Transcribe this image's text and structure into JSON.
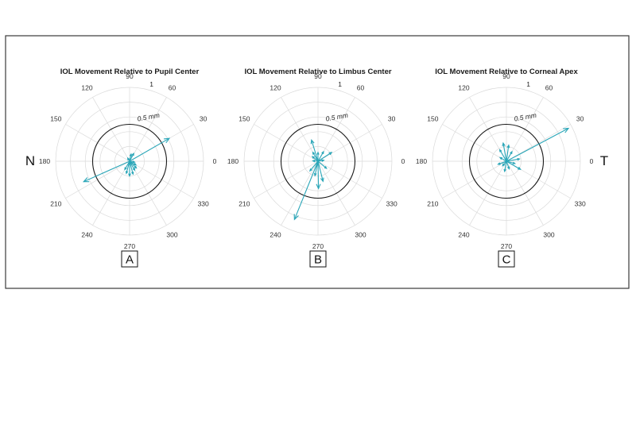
{
  "figure": {
    "side_left": "N",
    "side_right": "T",
    "vector_color": "#2aa6b8"
  },
  "chart_data": [
    {
      "type": "polar-compass",
      "title": "IOL Movement Relative to Pupil Center",
      "panel_label": "A",
      "theta_labels": [
        "0",
        "30",
        "60",
        "90",
        "120",
        "150",
        "180",
        "210",
        "240",
        "270",
        "300",
        "330"
      ],
      "r_max": 1,
      "r_max_label": "1",
      "ring_radius": 0.5,
      "ring_label": "0.5 mm",
      "vectors": [
        {
          "angle": 30,
          "r": 0.62
        },
        {
          "angle": 204,
          "r": 0.68
        },
        {
          "angle": 62,
          "r": 0.12
        },
        {
          "angle": 78,
          "r": 0.1
        },
        {
          "angle": 300,
          "r": 0.14
        },
        {
          "angle": 285,
          "r": 0.18
        },
        {
          "angle": 270,
          "r": 0.2
        },
        {
          "angle": 255,
          "r": 0.17
        },
        {
          "angle": 315,
          "r": 0.13
        },
        {
          "angle": 330,
          "r": 0.1
        },
        {
          "angle": 240,
          "r": 0.13
        },
        {
          "angle": 350,
          "r": 0.07
        },
        {
          "angle": 120,
          "r": 0.05
        }
      ]
    },
    {
      "type": "polar-compass",
      "title": "IOL Movement Relative to Limbus Center",
      "panel_label": "B",
      "theta_labels": [
        "0",
        "30",
        "60",
        "90",
        "120",
        "150",
        "180",
        "210",
        "240",
        "270",
        "300",
        "330"
      ],
      "r_max": 1,
      "r_max_label": "1",
      "ring_radius": 0.5,
      "ring_label": "0.5 mm",
      "vectors": [
        {
          "angle": 248,
          "r": 0.85
        },
        {
          "angle": 107,
          "r": 0.3
        },
        {
          "angle": 271,
          "r": 0.37
        },
        {
          "angle": 284,
          "r": 0.28
        },
        {
          "angle": 33,
          "r": 0.22
        },
        {
          "angle": 60,
          "r": 0.15
        },
        {
          "angle": 90,
          "r": 0.12
        },
        {
          "angle": 140,
          "r": 0.1
        },
        {
          "angle": 120,
          "r": 0.14
        },
        {
          "angle": 320,
          "r": 0.15
        },
        {
          "angle": 230,
          "r": 0.17
        },
        {
          "angle": 258,
          "r": 0.2
        },
        {
          "angle": 10,
          "r": 0.08
        },
        {
          "angle": 175,
          "r": 0.07
        }
      ]
    },
    {
      "type": "polar-compass",
      "title": "IOL Movement Relative to Corneal Apex",
      "panel_label": "C",
      "theta_labels": [
        "0",
        "30",
        "60",
        "90",
        "120",
        "150",
        "180",
        "210",
        "240",
        "270",
        "300",
        "330"
      ],
      "r_max": 1,
      "r_max_label": "1",
      "ring_radius": 0.5,
      "ring_label": "0.5 mm",
      "vectors": [
        {
          "angle": 28,
          "r": 0.95
        },
        {
          "angle": 100,
          "r": 0.25
        },
        {
          "angle": 82,
          "r": 0.22
        },
        {
          "angle": 120,
          "r": 0.18
        },
        {
          "angle": 60,
          "r": 0.15
        },
        {
          "angle": 150,
          "r": 0.1
        },
        {
          "angle": 200,
          "r": 0.12
        },
        {
          "angle": 230,
          "r": 0.08
        },
        {
          "angle": 260,
          "r": 0.14
        },
        {
          "angle": 290,
          "r": 0.11
        },
        {
          "angle": 330,
          "r": 0.22
        },
        {
          "angle": 345,
          "r": 0.12
        },
        {
          "angle": 10,
          "r": 0.18
        }
      ]
    }
  ]
}
